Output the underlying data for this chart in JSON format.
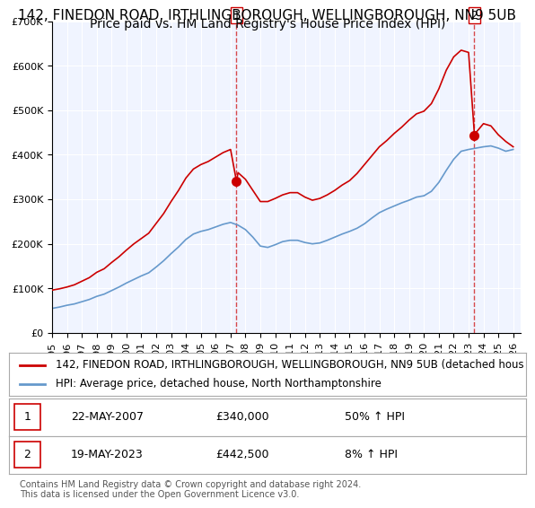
{
  "title_line1": "142, FINEDON ROAD, IRTHLINGBOROUGH, WELLINGBOROUGH, NN9 5UB",
  "title_line2": "Price paid vs. HM Land Registry's House Price Index (HPI)",
  "xlabel": "",
  "ylabel": "",
  "ylim": [
    0,
    700000
  ],
  "xlim_start": 1995.0,
  "xlim_end": 2026.5,
  "yticks": [
    0,
    100000,
    200000,
    300000,
    400000,
    500000,
    600000,
    700000
  ],
  "ytick_labels": [
    "£0",
    "£100K",
    "£200K",
    "£300K",
    "£400K",
    "£500K",
    "£600K",
    "£700K"
  ],
  "xticks": [
    1995,
    1996,
    1997,
    1998,
    1999,
    2000,
    2001,
    2002,
    2003,
    2004,
    2005,
    2006,
    2007,
    2008,
    2009,
    2010,
    2011,
    2012,
    2013,
    2014,
    2015,
    2016,
    2017,
    2018,
    2019,
    2020,
    2021,
    2022,
    2023,
    2024,
    2025,
    2026
  ],
  "background_color": "#f0f4ff",
  "grid_color": "#ffffff",
  "red_line_color": "#cc0000",
  "blue_line_color": "#6699cc",
  "marker1_date": 2007.39,
  "marker1_value": 340000,
  "marker2_date": 2023.38,
  "marker2_value": 442500,
  "vline1_x": 2007.39,
  "vline2_x": 2023.38,
  "legend_label_red": "142, FINEDON ROAD, IRTHLINGBOROUGH, WELLINGBOROUGH, NN9 5UB (detached hous",
  "legend_label_blue": "HPI: Average price, detached house, North Northamptonshire",
  "table_row1_num": "1",
  "table_row1_date": "22-MAY-2007",
  "table_row1_price": "£340,000",
  "table_row1_hpi": "50% ↑ HPI",
  "table_row2_num": "2",
  "table_row2_date": "19-MAY-2023",
  "table_row2_price": "£442,500",
  "table_row2_hpi": "8% ↑ HPI",
  "footnote": "Contains HM Land Registry data © Crown copyright and database right 2024.\nThis data is licensed under the Open Government Licence v3.0.",
  "title_fontsize": 11,
  "subtitle_fontsize": 10,
  "tick_fontsize": 8,
  "legend_fontsize": 8.5,
  "table_fontsize": 9
}
